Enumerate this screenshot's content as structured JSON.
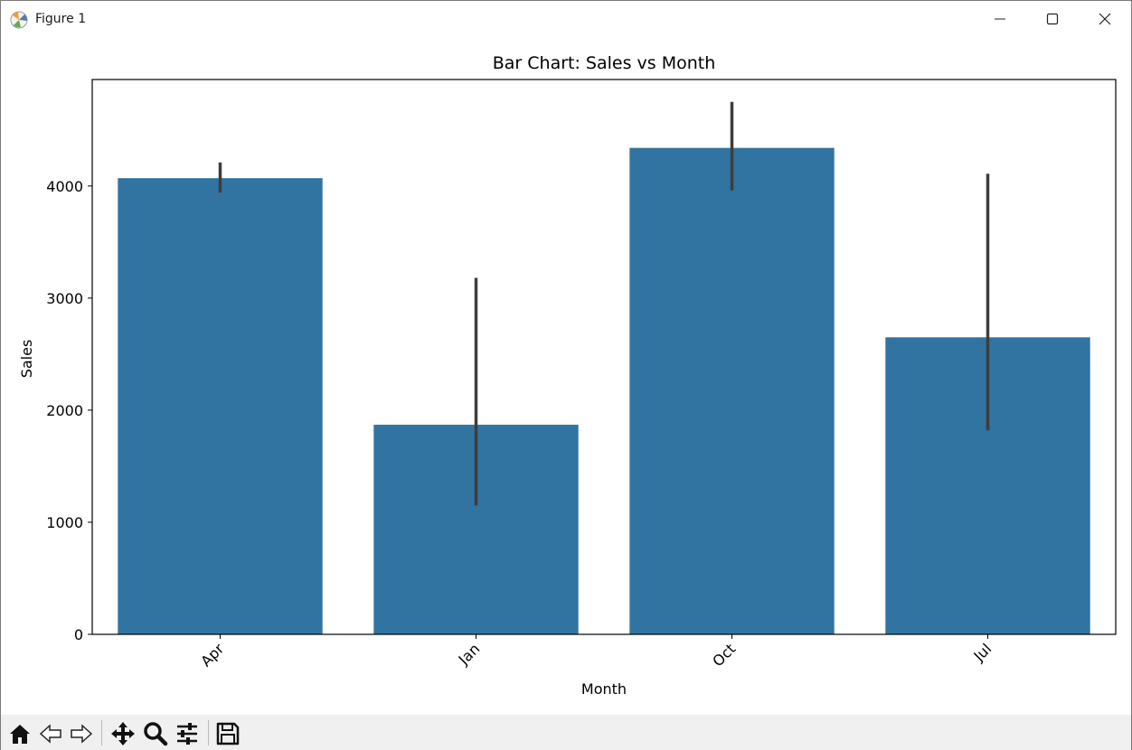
{
  "window": {
    "title": "Figure 1"
  },
  "toolbar": {
    "tools": [
      "home-icon",
      "back-icon",
      "forward-icon",
      "pan-icon",
      "zoom-icon",
      "configure-subplots-icon",
      "save-icon"
    ]
  },
  "colors": {
    "bar": "#3274a1",
    "errorbar": "#3d3d3d"
  },
  "chart_data": {
    "type": "bar",
    "title": "Bar Chart: Sales vs Month",
    "xlabel": "Month",
    "ylabel": "Sales",
    "categories": [
      "Apr",
      "Jan",
      "Oct",
      "Jul"
    ],
    "values": [
      4070,
      1870,
      4340,
      2650
    ],
    "error_low": [
      3940,
      1150,
      3960,
      1820
    ],
    "error_high": [
      4210,
      3180,
      4750,
      4110
    ],
    "ylim": [
      0,
      4950
    ],
    "yticks": [
      0,
      1000,
      2000,
      3000,
      4000
    ],
    "ytick_labels": [
      "0",
      "1000",
      "2000",
      "3000",
      "4000"
    ],
    "grid": false,
    "legend": "none"
  }
}
